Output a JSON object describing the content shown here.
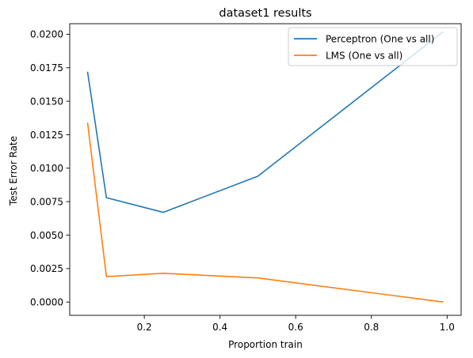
{
  "chart_data": {
    "type": "line",
    "title": "dataset1 results",
    "xlabel": "Proportion train",
    "ylabel": "Test Error Rate",
    "xlim": [
      0.003,
      1.037
    ],
    "ylim": [
      -0.00099,
      0.02079
    ],
    "xticks": [
      {
        "value": 0.2,
        "label": "0.2"
      },
      {
        "value": 0.4,
        "label": "0.4"
      },
      {
        "value": 0.6,
        "label": "0.6"
      },
      {
        "value": 0.8,
        "label": "0.8"
      },
      {
        "value": 1.0,
        "label": "1.0"
      }
    ],
    "yticks": [
      {
        "value": 0.0,
        "label": "0.0000"
      },
      {
        "value": 0.0025,
        "label": "0.0025"
      },
      {
        "value": 0.005,
        "label": "0.0050"
      },
      {
        "value": 0.0075,
        "label": "0.0075"
      },
      {
        "value": 0.01,
        "label": "0.0100"
      },
      {
        "value": 0.0125,
        "label": "0.0125"
      },
      {
        "value": 0.015,
        "label": "0.0150"
      },
      {
        "value": 0.0175,
        "label": "0.0175"
      },
      {
        "value": 0.02,
        "label": "0.0200"
      }
    ],
    "legend_position": "top-right",
    "grid": false,
    "series": [
      {
        "name": "Perceptron (One vs all)",
        "color": "#1f77b4",
        "x": [
          0.05,
          0.1,
          0.25,
          0.5,
          0.99
        ],
        "values": [
          0.0172,
          0.0078,
          0.0067,
          0.0094,
          0.0202
        ]
      },
      {
        "name": "LMS (One vs all)",
        "color": "#ff7f0e",
        "x": [
          0.05,
          0.1,
          0.25,
          0.5,
          0.99
        ],
        "values": [
          0.0134,
          0.0019,
          0.00215,
          0.0018,
          0.0
        ]
      }
    ]
  }
}
